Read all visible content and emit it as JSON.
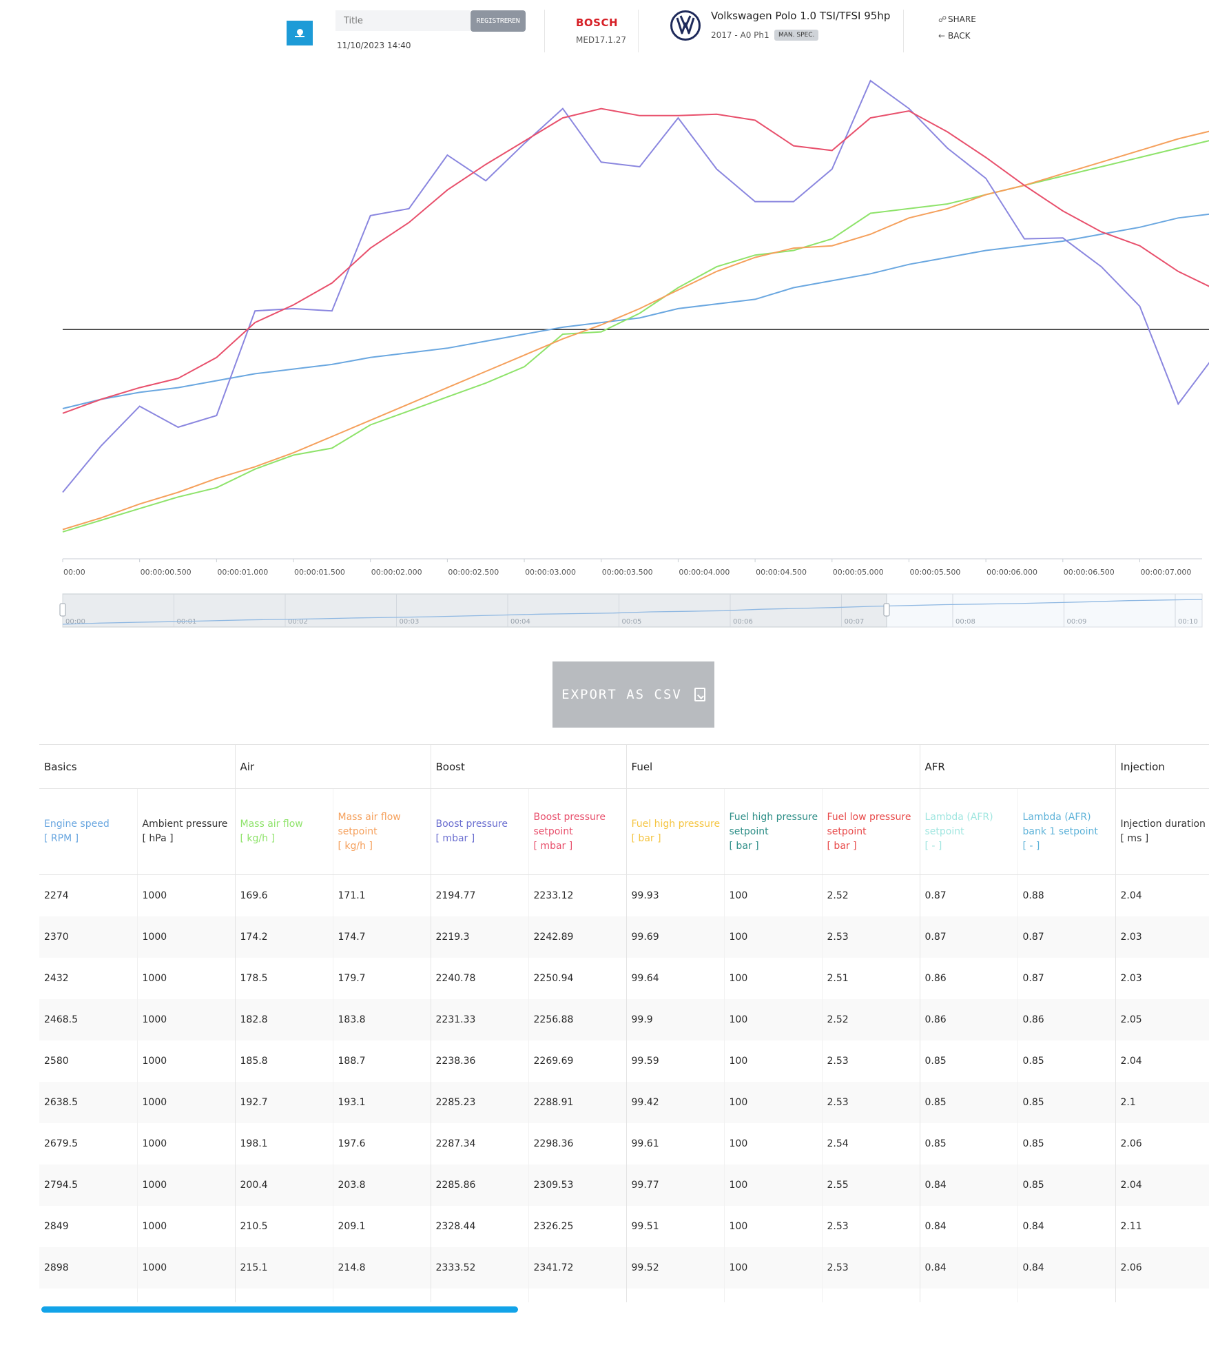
{
  "header": {
    "title_placeholder": "Title",
    "register_label": "REGISTREREN",
    "date": "11/10/2023 14:40",
    "brand": "BOSCH",
    "ecu": "MED17.1.27",
    "car_name": "Volkswagen Polo 1.0 TSI/TFSI 95hp",
    "car_sub": "2017 - A0 Ph1",
    "spec_badge": "MAN. SPEC.",
    "share_label": "SHARE",
    "back_label": "BACK"
  },
  "chart_data": {
    "type": "line",
    "x_tick_labels": [
      "00:00",
      "00:00:00.500",
      "00:00:01.000",
      "00:00:01.500",
      "00:00:02.000",
      "00:00:02.500",
      "00:00:03.000",
      "00:00:03.500",
      "00:00:04.000",
      "00:00:04.500",
      "00:00:05.000",
      "00:00:05.500",
      "00:00:06.000",
      "00:00:06.500",
      "00:00:07.000"
    ],
    "navigator_tick_labels": [
      "00:00",
      "00:01",
      "00:02",
      "00:03",
      "00:04",
      "00:05",
      "00:06",
      "00:07",
      "00:08",
      "00:09",
      "00:10"
    ],
    "x_step_seconds": 0.25,
    "xlim": [
      0,
      7.45
    ],
    "reference_line": 0.5,
    "grid": false,
    "legend": "none",
    "series": [
      {
        "color": "#6aa7e0",
        "values": [
          0.33,
          0.35,
          0.365,
          0.375,
          0.39,
          0.405,
          0.415,
          0.425,
          0.44,
          0.45,
          0.46,
          0.475,
          0.49,
          0.505,
          0.515,
          0.525,
          0.545,
          0.555,
          0.565,
          0.59,
          0.605,
          0.62,
          0.64,
          0.655,
          0.67,
          0.68,
          0.69,
          0.705,
          0.72,
          0.74,
          0.75,
          0.76
        ]
      },
      {
        "color": "#8ee36a",
        "values": [
          0.065,
          0.09,
          0.115,
          0.14,
          0.16,
          0.2,
          0.23,
          0.245,
          0.295,
          0.325,
          0.355,
          0.385,
          0.42,
          0.49,
          0.495,
          0.535,
          0.59,
          0.635,
          0.66,
          0.67,
          0.695,
          0.75,
          0.76,
          0.77,
          0.79,
          0.81,
          0.83,
          0.85,
          0.87,
          0.89,
          0.91,
          0.915
        ]
      },
      {
        "color": "#f5a05c",
        "values": [
          0.07,
          0.095,
          0.125,
          0.15,
          0.18,
          0.205,
          0.235,
          0.27,
          0.305,
          0.34,
          0.375,
          0.41,
          0.445,
          0.48,
          0.51,
          0.545,
          0.585,
          0.625,
          0.655,
          0.675,
          0.68,
          0.705,
          0.74,
          0.76,
          0.79,
          0.81,
          0.835,
          0.86,
          0.885,
          0.91,
          0.93,
          0.955
        ]
      },
      {
        "color": "#8a86df",
        "values": [
          0.15,
          0.25,
          0.335,
          0.29,
          0.315,
          0.54,
          0.545,
          0.54,
          0.745,
          0.76,
          0.875,
          0.82,
          0.9,
          0.975,
          0.86,
          0.85,
          0.955,
          0.845,
          0.775,
          0.775,
          0.845,
          1.035,
          0.975,
          0.89,
          0.825,
          0.695,
          0.697,
          0.635,
          0.55,
          0.34,
          0.45,
          0.35
        ]
      },
      {
        "color": "#e8506c",
        "values": [
          0.32,
          0.35,
          0.375,
          0.395,
          0.44,
          0.515,
          0.553,
          0.6,
          0.675,
          0.73,
          0.8,
          0.855,
          0.905,
          0.955,
          0.975,
          0.96,
          0.96,
          0.963,
          0.95,
          0.895,
          0.885,
          0.955,
          0.97,
          0.925,
          0.87,
          0.81,
          0.755,
          0.71,
          0.68,
          0.625,
          0.585,
          0.53
        ]
      }
    ]
  },
  "export_label": "EXPORT AS CSV",
  "table": {
    "groups": [
      {
        "label": "Basics",
        "span": 2
      },
      {
        "label": "Air",
        "span": 2
      },
      {
        "label": "Boost",
        "span": 2
      },
      {
        "label": "Fuel",
        "span": 3
      },
      {
        "label": "AFR",
        "span": 2
      },
      {
        "label": "Injection",
        "span": 2
      }
    ],
    "columns": [
      {
        "name": "Engine speed",
        "unit": "[ RPM ]",
        "color": "#6aa7e0"
      },
      {
        "name": "Ambient pressure",
        "unit": "[ hPa ]",
        "color": "#333333"
      },
      {
        "name": "Mass air flow",
        "unit": "[ kg/h ]",
        "color": "#8ee36a"
      },
      {
        "name": "Mass air flow setpoint",
        "unit": "[ kg/h ]",
        "color": "#f5a05c"
      },
      {
        "name": "Boost pressure",
        "unit": "[ mbar ]",
        "color": "#6b6fd0"
      },
      {
        "name": "Boost pressure setpoint",
        "unit": "[ mbar ]",
        "color": "#e8506c"
      },
      {
        "name": "Fuel high pressure",
        "unit": "[ bar ]",
        "color": "#f5c542"
      },
      {
        "name": "Fuel high pressure setpoint",
        "unit": "[ bar ]",
        "color": "#2f8f88"
      },
      {
        "name": "Fuel low pressure setpoint",
        "unit": "[ bar ]",
        "color": "#e84a4a"
      },
      {
        "name": "Lambda (AFR) setpoint",
        "unit": "[ - ]",
        "color": "#a0e6e0"
      },
      {
        "name": "Lambda (AFR) bank 1 setpoint",
        "unit": "[ - ]",
        "color": "#5fb3d9"
      },
      {
        "name": "Injection duration",
        "unit": "[ ms ]",
        "color": "#333333"
      }
    ],
    "rows": [
      [
        "2274",
        "1000",
        "169.6",
        "171.1",
        "2194.77",
        "2233.12",
        "99.93",
        "100",
        "2.52",
        "0.87",
        "0.88",
        "2.04"
      ],
      [
        "2370",
        "1000",
        "174.2",
        "174.7",
        "2219.3",
        "2242.89",
        "99.69",
        "100",
        "2.53",
        "0.87",
        "0.87",
        "2.03"
      ],
      [
        "2432",
        "1000",
        "178.5",
        "179.7",
        "2240.78",
        "2250.94",
        "99.64",
        "100",
        "2.51",
        "0.86",
        "0.87",
        "2.03"
      ],
      [
        "2468.5",
        "1000",
        "182.8",
        "183.8",
        "2231.33",
        "2256.88",
        "99.9",
        "100",
        "2.52",
        "0.86",
        "0.86",
        "2.05"
      ],
      [
        "2580",
        "1000",
        "185.8",
        "188.7",
        "2238.36",
        "2269.69",
        "99.59",
        "100",
        "2.53",
        "0.85",
        "0.85",
        "2.04"
      ],
      [
        "2638.5",
        "1000",
        "192.7",
        "193.1",
        "2285.23",
        "2288.91",
        "99.42",
        "100",
        "2.53",
        "0.85",
        "0.85",
        "2.1"
      ],
      [
        "2679.5",
        "1000",
        "198.1",
        "197.6",
        "2287.34",
        "2298.36",
        "99.61",
        "100",
        "2.54",
        "0.85",
        "0.85",
        "2.06"
      ],
      [
        "2794.5",
        "1000",
        "200.4",
        "203.8",
        "2285.86",
        "2309.53",
        "99.77",
        "100",
        "2.55",
        "0.84",
        "0.85",
        "2.04"
      ],
      [
        "2849",
        "1000",
        "210.5",
        "209.1",
        "2328.44",
        "2326.25",
        "99.51",
        "100",
        "2.53",
        "0.84",
        "0.84",
        "2.11"
      ],
      [
        "2898",
        "1000",
        "215.1",
        "214.8",
        "2333.52",
        "2341.72",
        "99.52",
        "100",
        "2.53",
        "0.84",
        "0.84",
        "2.06"
      ]
    ]
  }
}
